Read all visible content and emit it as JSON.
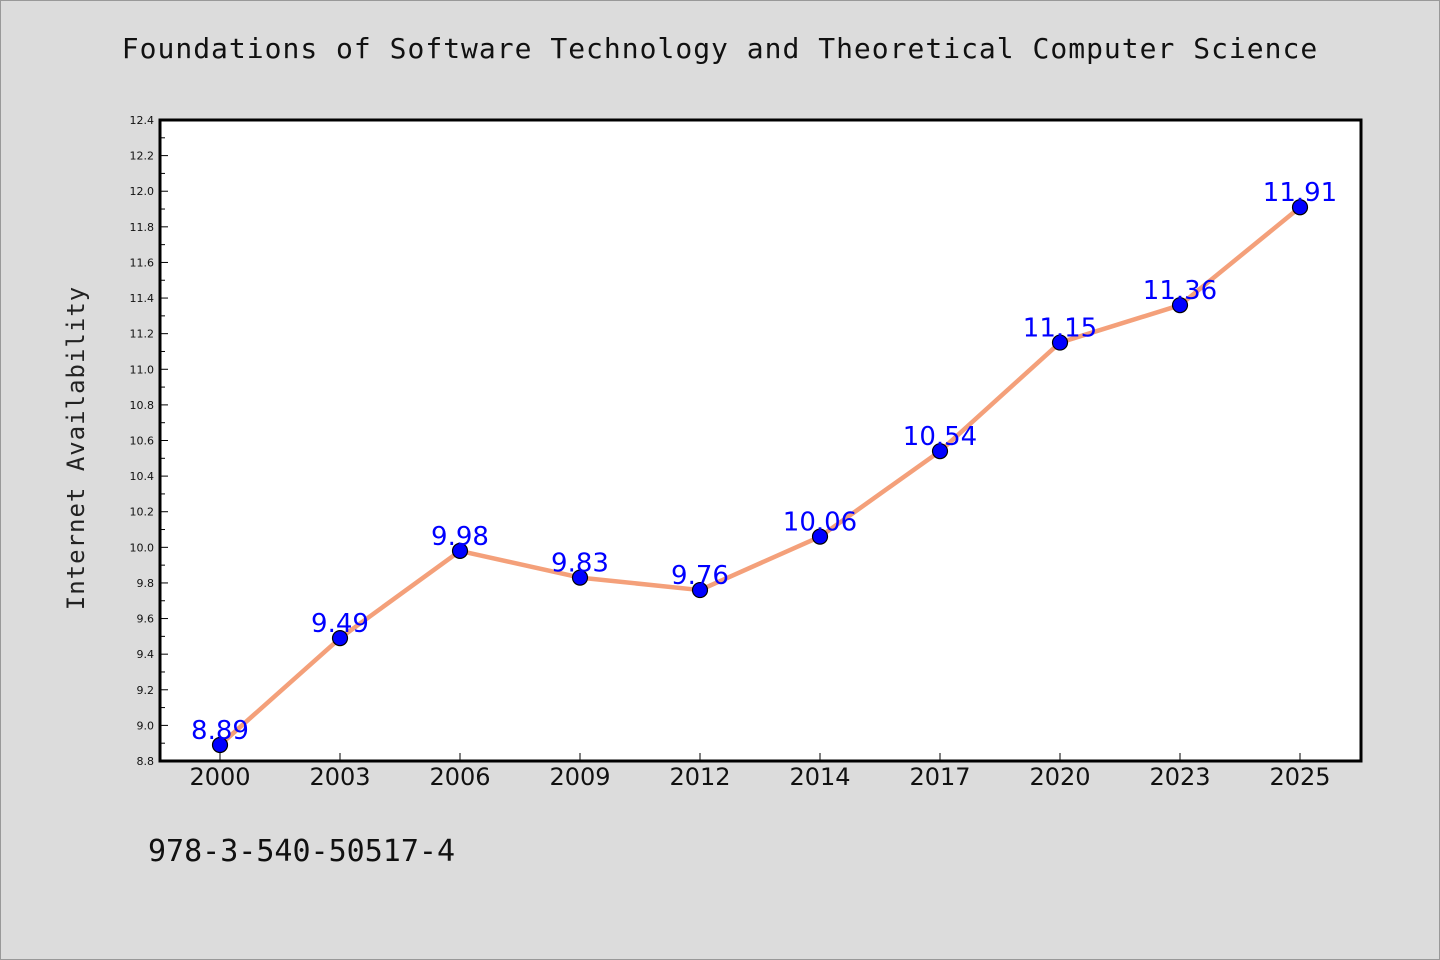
{
  "chart_data": {
    "type": "line",
    "title": "Foundations of Software Technology and Theoretical Computer Science",
    "xlabel": "",
    "ylabel": "Internet Availability",
    "categories": [
      "2000",
      "2003",
      "2006",
      "2009",
      "2012",
      "2014",
      "2017",
      "2020",
      "2023",
      "2025"
    ],
    "values": [
      8.89,
      9.49,
      9.98,
      9.83,
      9.76,
      10.06,
      10.54,
      11.15,
      11.36,
      11.91
    ],
    "data_labels": [
      "8.89",
      "9.49",
      "9.98",
      "9.83",
      "9.76",
      "10.06",
      "10.54",
      "11.15",
      "11.36",
      "11.91"
    ],
    "ylim": [
      8.8,
      12.4
    ],
    "yticks": [
      "8.8",
      "9.0",
      "9.2",
      "9.4",
      "9.6",
      "9.8",
      "10.0",
      "10.2",
      "10.4",
      "10.6",
      "10.8",
      "11.0",
      "11.2",
      "11.4",
      "11.6",
      "11.8",
      "12.0",
      "12.2",
      "12.4"
    ],
    "grid": false,
    "legend": "none",
    "colors": {
      "line": "#f4a07a",
      "marker": "#0000ff",
      "marker_edge": "#000000",
      "data_label": "#0000ff",
      "background": "#dcdcdc",
      "plot_background": "#ffffff"
    }
  },
  "footer": {
    "isbn": "978-3-540-50517-4"
  }
}
